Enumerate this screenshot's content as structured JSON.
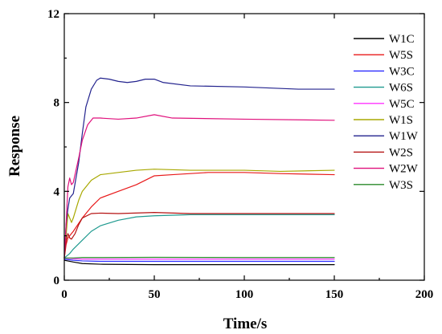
{
  "chart_data": {
    "type": "line",
    "xlabel": "Time/s",
    "ylabel": "Response",
    "xlim": [
      0,
      200
    ],
    "ylim": [
      0,
      12
    ],
    "xticks": [
      0,
      50,
      100,
      150,
      200
    ],
    "yticks": [
      0,
      4,
      8,
      12
    ],
    "grid": false,
    "legend_position": "top-right",
    "series": [
      {
        "name": "W1C",
        "color": "#000000",
        "points": [
          [
            0,
            0.9
          ],
          [
            5,
            0.82
          ],
          [
            10,
            0.75
          ],
          [
            20,
            0.72
          ],
          [
            50,
            0.7
          ],
          [
            100,
            0.7
          ],
          [
            150,
            0.7
          ]
        ]
      },
      {
        "name": "W5S",
        "color": "#e8191a",
        "points": [
          [
            0,
            1.0
          ],
          [
            1,
            1.6
          ],
          [
            2,
            1.9
          ],
          [
            3,
            2.0
          ],
          [
            5,
            2.2
          ],
          [
            10,
            2.8
          ],
          [
            15,
            3.3
          ],
          [
            20,
            3.7
          ],
          [
            30,
            4.0
          ],
          [
            40,
            4.3
          ],
          [
            50,
            4.7
          ],
          [
            60,
            4.75
          ],
          [
            80,
            4.85
          ],
          [
            100,
            4.85
          ],
          [
            120,
            4.8
          ],
          [
            150,
            4.75
          ]
        ]
      },
      {
        "name": "W3C",
        "color": "#2b2bff",
        "points": [
          [
            0,
            0.95
          ],
          [
            5,
            0.9
          ],
          [
            10,
            0.87
          ],
          [
            20,
            0.85
          ],
          [
            50,
            0.85
          ],
          [
            100,
            0.85
          ],
          [
            150,
            0.85
          ]
        ]
      },
      {
        "name": "W6S",
        "color": "#1f9a8f",
        "points": [
          [
            0,
            1.0
          ],
          [
            3,
            1.2
          ],
          [
            5,
            1.4
          ],
          [
            10,
            1.8
          ],
          [
            15,
            2.2
          ],
          [
            20,
            2.45
          ],
          [
            30,
            2.7
          ],
          [
            40,
            2.85
          ],
          [
            50,
            2.9
          ],
          [
            70,
            2.95
          ],
          [
            100,
            2.95
          ],
          [
            150,
            2.95
          ]
        ]
      },
      {
        "name": "W5C",
        "color": "#ff33ff",
        "points": [
          [
            0,
            1.0
          ],
          [
            5,
            0.97
          ],
          [
            10,
            0.95
          ],
          [
            20,
            0.95
          ],
          [
            50,
            0.95
          ],
          [
            100,
            0.95
          ],
          [
            150,
            0.95
          ]
        ]
      },
      {
        "name": "W1S",
        "color": "#a8a800",
        "points": [
          [
            0,
            1.0
          ],
          [
            1,
            2.0
          ],
          [
            2,
            3.0
          ],
          [
            3,
            2.8
          ],
          [
            4,
            2.6
          ],
          [
            5,
            2.8
          ],
          [
            8,
            3.6
          ],
          [
            10,
            4.0
          ],
          [
            15,
            4.5
          ],
          [
            20,
            4.75
          ],
          [
            30,
            4.85
          ],
          [
            40,
            4.95
          ],
          [
            50,
            5.0
          ],
          [
            70,
            4.95
          ],
          [
            100,
            4.95
          ],
          [
            120,
            4.9
          ],
          [
            150,
            4.95
          ]
        ]
      },
      {
        "name": "W1W",
        "color": "#23238e",
        "points": [
          [
            0,
            1.0
          ],
          [
            1,
            2.5
          ],
          [
            2,
            3.2
          ],
          [
            3,
            3.7
          ],
          [
            5,
            3.9
          ],
          [
            8,
            5.3
          ],
          [
            10,
            6.6
          ],
          [
            12,
            7.8
          ],
          [
            15,
            8.6
          ],
          [
            18,
            9.0
          ],
          [
            20,
            9.1
          ],
          [
            25,
            9.05
          ],
          [
            30,
            8.95
          ],
          [
            35,
            8.9
          ],
          [
            40,
            8.95
          ],
          [
            45,
            9.05
          ],
          [
            50,
            9.05
          ],
          [
            55,
            8.9
          ],
          [
            70,
            8.75
          ],
          [
            100,
            8.7
          ],
          [
            130,
            8.6
          ],
          [
            150,
            8.6
          ]
        ]
      },
      {
        "name": "W2S",
        "color": "#b51212",
        "points": [
          [
            0,
            1.0
          ],
          [
            1,
            1.8
          ],
          [
            2,
            2.1
          ],
          [
            3,
            1.9
          ],
          [
            4,
            1.85
          ],
          [
            6,
            2.1
          ],
          [
            8,
            2.5
          ],
          [
            10,
            2.8
          ],
          [
            15,
            3.0
          ],
          [
            20,
            3.02
          ],
          [
            30,
            3.0
          ],
          [
            50,
            3.05
          ],
          [
            70,
            3.0
          ],
          [
            100,
            3.0
          ],
          [
            150,
            3.0
          ]
        ]
      },
      {
        "name": "W2W",
        "color": "#e0107c",
        "points": [
          [
            0,
            1.0
          ],
          [
            1,
            2.5
          ],
          [
            2,
            4.2
          ],
          [
            3,
            4.6
          ],
          [
            4,
            4.3
          ],
          [
            5,
            4.4
          ],
          [
            8,
            5.5
          ],
          [
            10,
            6.3
          ],
          [
            13,
            7.0
          ],
          [
            16,
            7.3
          ],
          [
            20,
            7.3
          ],
          [
            30,
            7.25
          ],
          [
            40,
            7.3
          ],
          [
            50,
            7.45
          ],
          [
            60,
            7.3
          ],
          [
            100,
            7.25
          ],
          [
            150,
            7.2
          ]
        ]
      },
      {
        "name": "W3S",
        "color": "#2a8a2a",
        "points": [
          [
            0,
            1.0
          ],
          [
            5,
            1.0
          ],
          [
            10,
            1.02
          ],
          [
            20,
            1.02
          ],
          [
            50,
            1.03
          ],
          [
            100,
            1.02
          ],
          [
            150,
            1.02
          ]
        ]
      }
    ]
  }
}
